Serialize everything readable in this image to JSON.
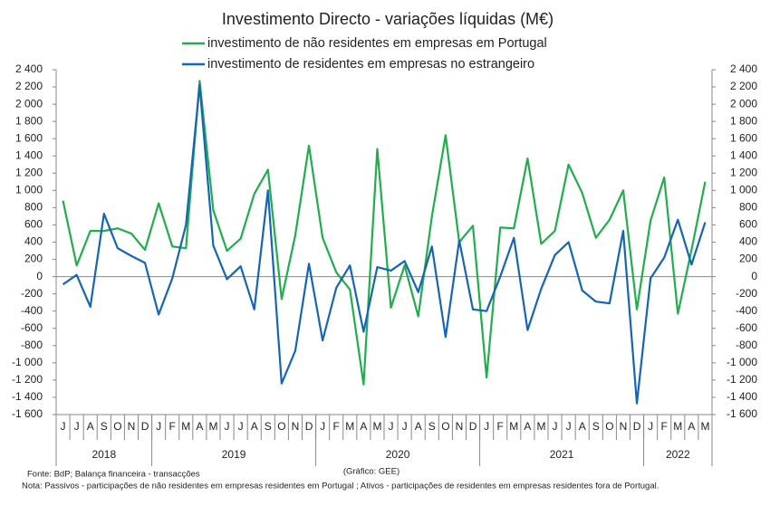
{
  "chart_data": {
    "type": "line",
    "title": "Investimento Directo - variações líquidas (M€)",
    "categories": [
      "J",
      "J",
      "A",
      "S",
      "O",
      "N",
      "D",
      "J",
      "F",
      "M",
      "A",
      "M",
      "J",
      "J",
      "A",
      "S",
      "O",
      "N",
      "D",
      "J",
      "F",
      "M",
      "A",
      "M",
      "J",
      "J",
      "A",
      "S",
      "O",
      "N",
      "D",
      "J",
      "F",
      "M",
      "A",
      "M",
      "J",
      "J",
      "A",
      "S",
      "O",
      "N",
      "D",
      "J",
      "F",
      "M",
      "A",
      "M"
    ],
    "year_groups": [
      {
        "label": "2018",
        "months": 7
      },
      {
        "label": "2019",
        "months": 12
      },
      {
        "label": "2020",
        "months": 12
      },
      {
        "label": "2021",
        "months": 12
      },
      {
        "label": "2022",
        "months": 5
      }
    ],
    "series": [
      {
        "name": "investimento de não residentes em empresas em Portugal",
        "color": "#1fae4b",
        "values": [
          880,
          130,
          530,
          530,
          560,
          500,
          310,
          850,
          350,
          330,
          2270,
          770,
          300,
          440,
          960,
          1240,
          -260,
          480,
          1520,
          450,
          50,
          -150,
          -1250,
          1480,
          -360,
          130,
          -460,
          700,
          1640,
          400,
          590,
          -1170,
          570,
          560,
          1370,
          380,
          530,
          1300,
          970,
          450,
          660,
          1000,
          -380,
          650,
          1150,
          -430,
          310,
          1100
        ]
      },
      {
        "name": "investimento de residentes em empresas no estrangeiro",
        "color": "#1565b5",
        "values": [
          -90,
          20,
          -350,
          730,
          330,
          240,
          160,
          -440,
          -20,
          600,
          2220,
          360,
          -30,
          120,
          -380,
          1000,
          -1240,
          -860,
          150,
          -740,
          -130,
          130,
          -640,
          110,
          70,
          180,
          -180,
          350,
          -700,
          420,
          -380,
          -400,
          0,
          450,
          -620,
          -140,
          250,
          400,
          -160,
          -290,
          -310,
          530,
          -1470,
          -20,
          220,
          660,
          140,
          630
        ]
      }
    ],
    "ylim": [
      -1600,
      2400
    ],
    "yticks": [
      {
        "value": -1600,
        "label": "-1 600"
      },
      {
        "value": -1400,
        "label": "-1 400"
      },
      {
        "value": -1200,
        "label": "-1 200"
      },
      {
        "value": -1000,
        "label": "-1 000"
      },
      -800,
      -600,
      -400,
      -200,
      0,
      200,
      400,
      600,
      800,
      {
        "value": 1000,
        "label": "1 000"
      },
      {
        "value": 1200,
        "label": "1 200"
      },
      {
        "value": 1400,
        "label": "1 400"
      },
      {
        "value": 1600,
        "label": "1 600"
      },
      {
        "value": 1800,
        "label": "1 800"
      },
      {
        "value": 2000,
        "label": "2 000"
      },
      {
        "value": 2200,
        "label": "2 200"
      },
      {
        "value": 2400,
        "label": "2 400"
      }
    ],
    "y2lim": [
      -1600,
      2400
    ],
    "y2ticks": [
      {
        "value": -1600,
        "label": "-1 600"
      },
      {
        "value": -1400,
        "label": "-1 400"
      },
      {
        "value": -1200,
        "label": "-1 200"
      },
      {
        "value": -1000,
        "label": "-1 000"
      },
      -800,
      -600,
      -400,
      -200,
      0,
      200,
      400,
      600,
      800,
      {
        "value": 1000,
        "label": "1 000"
      },
      {
        "value": 1200,
        "label": "1 200"
      },
      {
        "value": 1400,
        "label": "1 400"
      },
      {
        "value": 1600,
        "label": "1 600"
      },
      {
        "value": 1800,
        "label": "1 800"
      },
      {
        "value": 2000,
        "label": "2 000"
      },
      {
        "value": 2200,
        "label": "2 200"
      },
      {
        "value": 2400,
        "label": "2 400"
      }
    ],
    "grid": false,
    "source": "Fonte: BdP; Balança financeira - transacções",
    "credit": "(Gráfico: GEE)",
    "note": "Nota: Passivos - participações de não residentes em empresas residentes em Portugal ; Ativos - participações de residentes em empresas residentes fora de Portugal."
  }
}
